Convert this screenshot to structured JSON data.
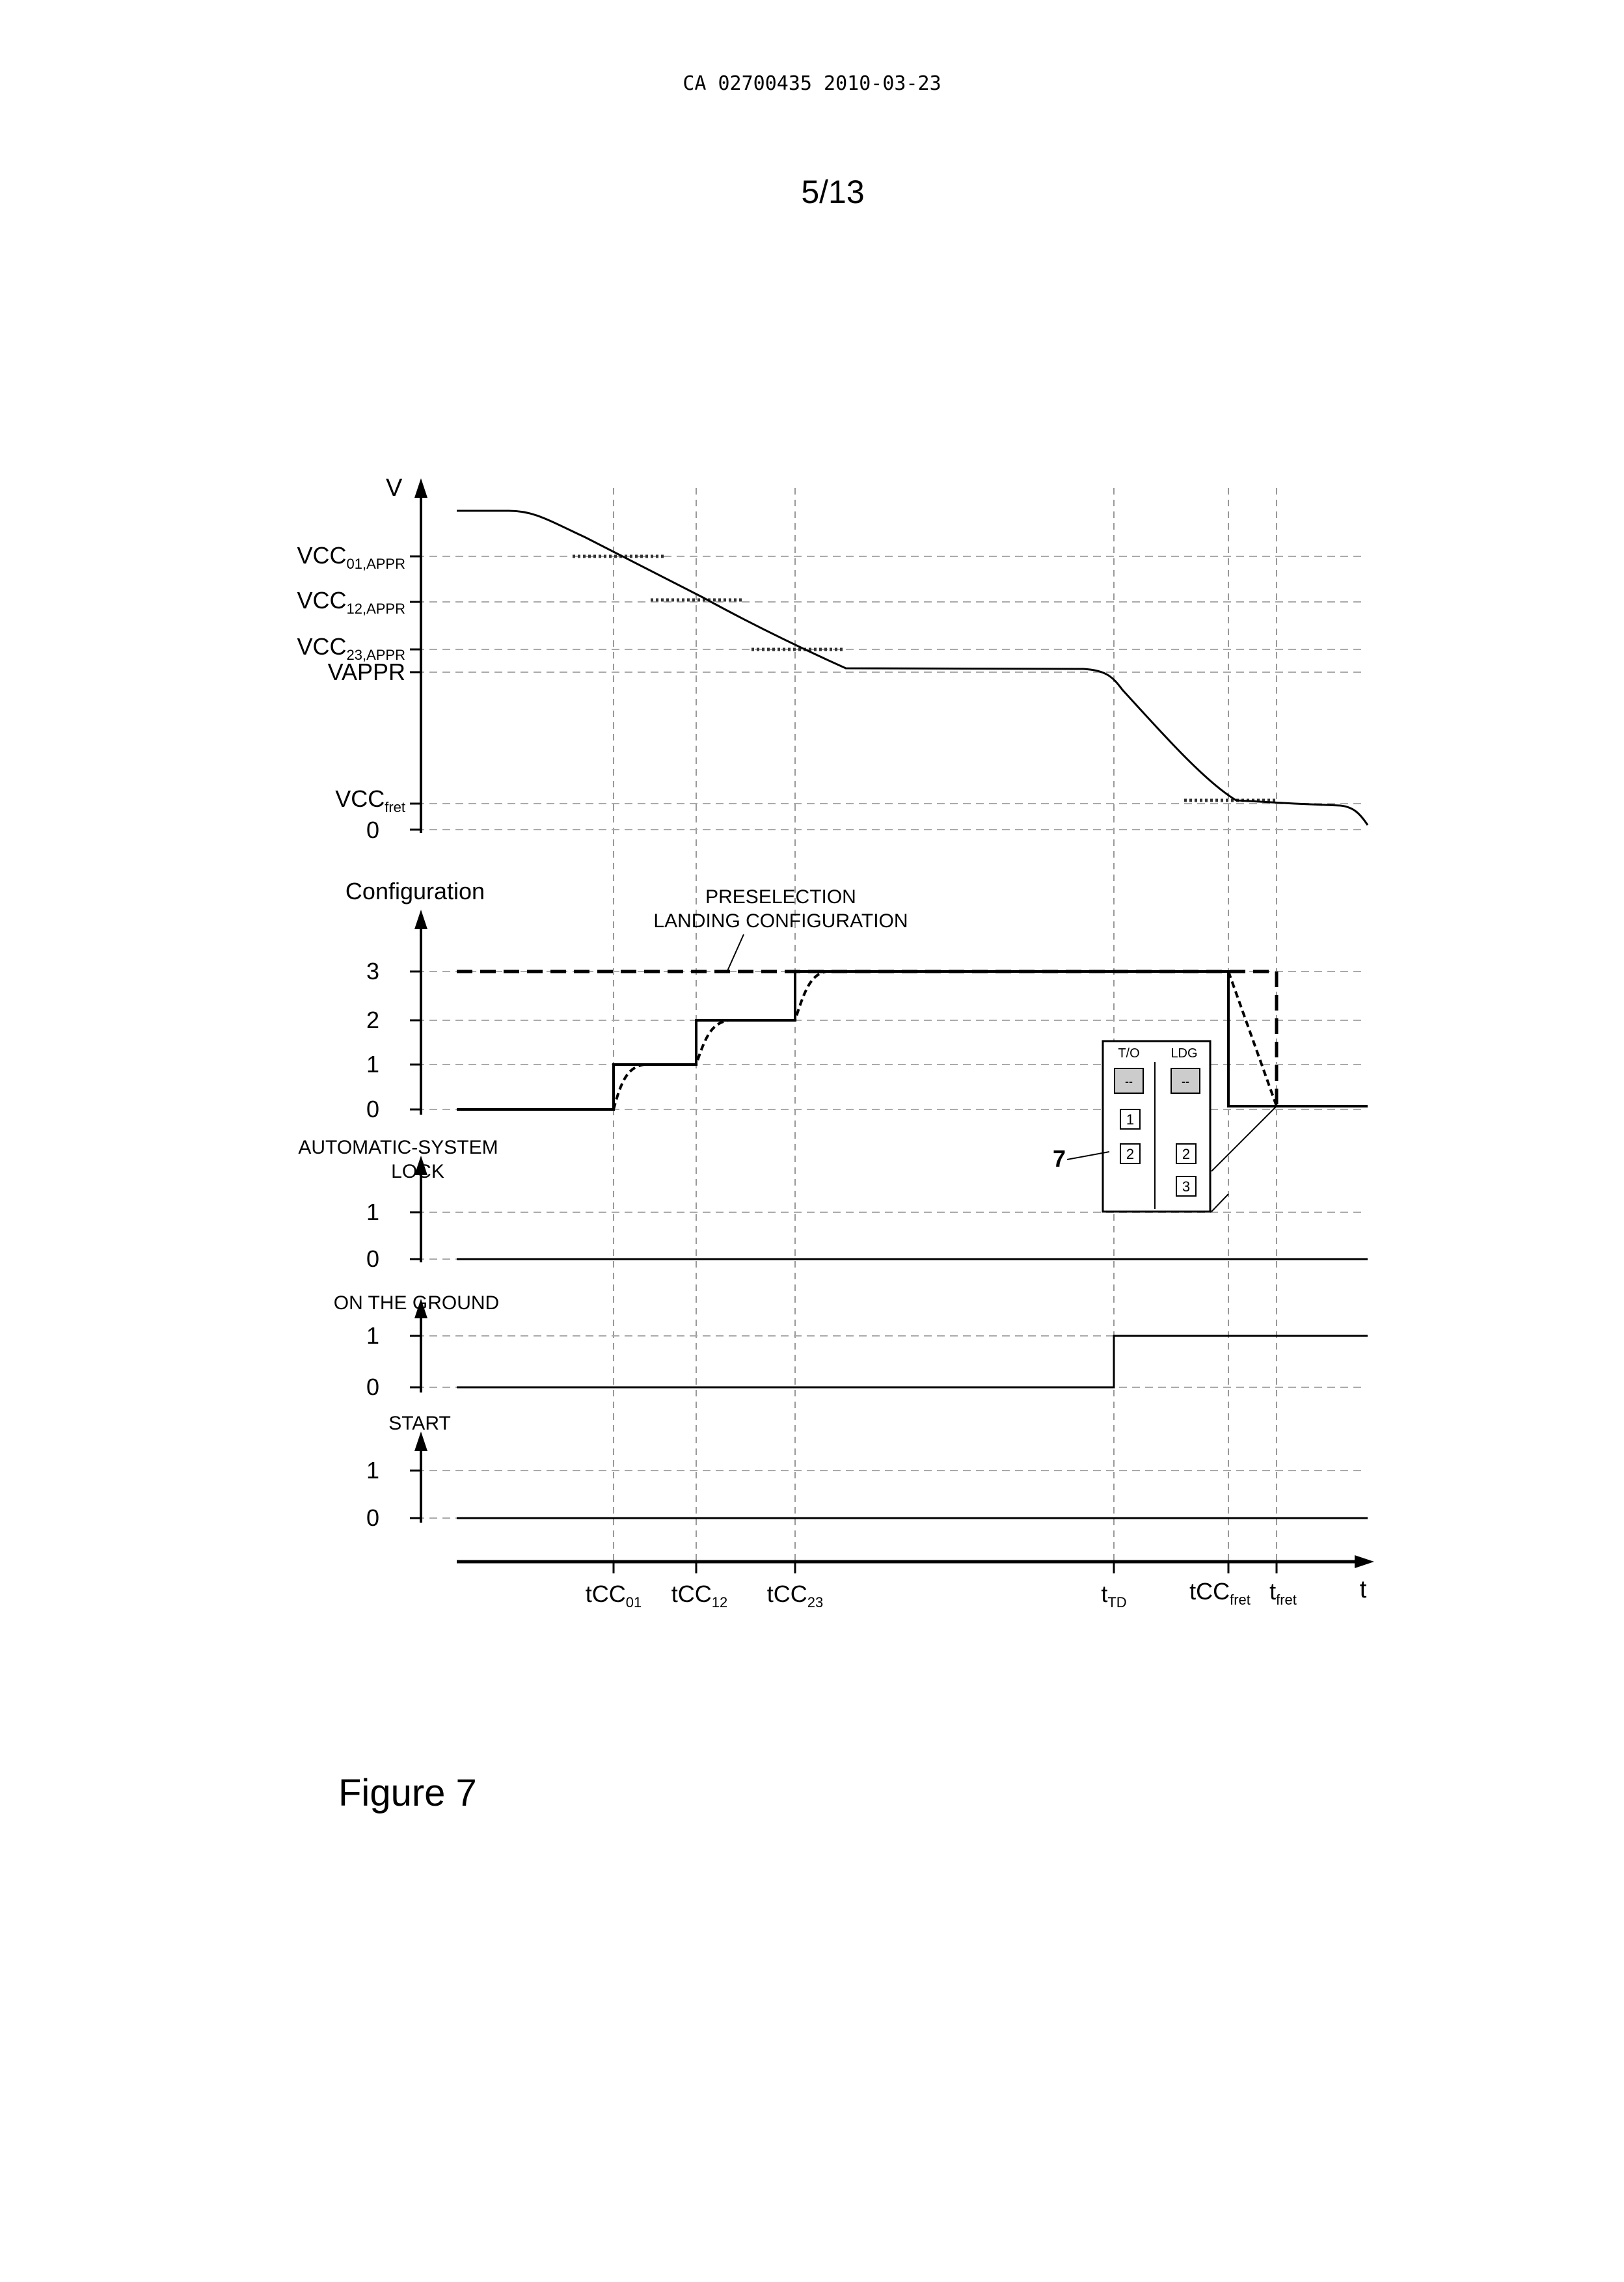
{
  "header": {
    "doc_id": "CA 02700435 2010-03-23",
    "page": "5/13"
  },
  "figure_label": "Figure 7",
  "speed_panel": {
    "axis_label": "V",
    "levels": [
      {
        "key": "vcc01",
        "base": "VCC",
        "sub": "01,APPR"
      },
      {
        "key": "vcc12",
        "base": "VCC",
        "sub": "12,APPR"
      },
      {
        "key": "vcc23",
        "base": "VCC",
        "sub": "23,APPR"
      },
      {
        "key": "vappr",
        "base": "VAPPR",
        "sub": ""
      },
      {
        "key": "vccfret",
        "base": "VCC",
        "sub": "fret"
      },
      {
        "key": "zero",
        "base": "0",
        "sub": ""
      }
    ]
  },
  "config_panel": {
    "axis_label": "Configuration",
    "preselection_line1": "PRESELECTION",
    "preselection_line2": "LANDING CONFIGURATION",
    "ticks": [
      "3",
      "2",
      "1",
      "0"
    ]
  },
  "lock_panel": {
    "line1": "AUTOMATIC-SYSTEM",
    "line2": "LOCK",
    "ticks": [
      "1",
      "0"
    ]
  },
  "ground_panel": {
    "label": "ON THE GROUND",
    "ticks": [
      "1",
      "0"
    ]
  },
  "start_panel": {
    "label": "START",
    "ticks": [
      "1",
      "0"
    ]
  },
  "time_axis": {
    "label": "t",
    "events": [
      {
        "key": "tcc01",
        "base": "tCC",
        "sub": "01"
      },
      {
        "key": "tcc12",
        "base": "tCC",
        "sub": "12"
      },
      {
        "key": "tcc23",
        "base": "tCC",
        "sub": "23"
      },
      {
        "key": "ttd",
        "base": "t",
        "sub": "TD"
      },
      {
        "key": "tccfret",
        "base": "tCC",
        "sub": "fret"
      },
      {
        "key": "tfret",
        "base": "t",
        "sub": "fret"
      }
    ]
  },
  "inset": {
    "callout": "7",
    "col_left": "T/O",
    "col_right": "LDG",
    "left_pos": [
      "--",
      "1",
      "2"
    ],
    "right_pos": [
      "--",
      "2",
      "3"
    ]
  }
}
